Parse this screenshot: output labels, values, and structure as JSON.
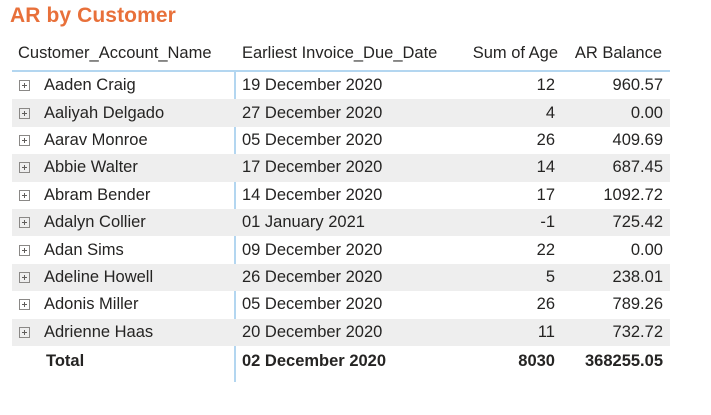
{
  "visual": {
    "title": "AR by Customer",
    "title_color": "#e8703a",
    "header_rule_color": "#b3d6f0",
    "band_color": "#eeeeee"
  },
  "columns": {
    "name": "Customer_Account_Name",
    "due_date": "Earliest Invoice_Due_Date",
    "age": "Sum of Age",
    "balance": "AR Balance"
  },
  "rows": [
    {
      "name": "Aaden Craig",
      "due_date": "19 December 2020",
      "age": "12",
      "balance": "960.57"
    },
    {
      "name": "Aaliyah Delgado",
      "due_date": "27 December 2020",
      "age": "4",
      "balance": "0.00"
    },
    {
      "name": "Aarav Monroe",
      "due_date": "05 December 2020",
      "age": "26",
      "balance": "409.69"
    },
    {
      "name": "Abbie Walter",
      "due_date": "17 December 2020",
      "age": "14",
      "balance": "687.45"
    },
    {
      "name": "Abram Bender",
      "due_date": "14 December 2020",
      "age": "17",
      "balance": "1092.72"
    },
    {
      "name": "Adalyn Collier",
      "due_date": "01 January 2021",
      "age": "-1",
      "balance": "725.42"
    },
    {
      "name": "Adan Sims",
      "due_date": "09 December 2020",
      "age": "22",
      "balance": "0.00"
    },
    {
      "name": "Adeline Howell",
      "due_date": "26 December 2020",
      "age": "5",
      "balance": "238.01"
    },
    {
      "name": "Adonis Miller",
      "due_date": "05 December 2020",
      "age": "26",
      "balance": "789.26"
    },
    {
      "name": "Adrienne Haas",
      "due_date": "20 December 2020",
      "age": "11",
      "balance": "732.72"
    }
  ],
  "total": {
    "label": "Total",
    "due_date": "02 December 2020",
    "age": "8030",
    "balance": "368255.05"
  }
}
